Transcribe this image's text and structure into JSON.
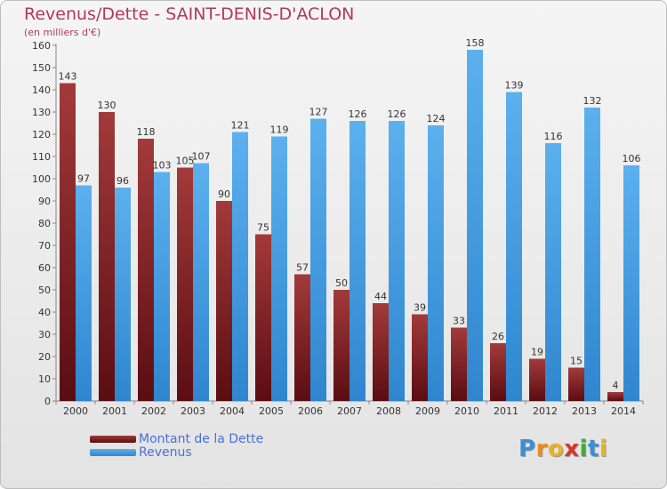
{
  "title": "Revenus/Dette - SAINT-DENIS-D'ACLON",
  "subtitle": "(en milliers d'€)",
  "colors": {
    "dette": "#7d1a1f",
    "revenus": "#4aa2e6",
    "title": "#b03a5a",
    "legend_text": "#4a6fd8"
  },
  "legend": [
    {
      "label": "Montant de la Dette",
      "color": "#7d1a1f"
    },
    {
      "label": "Revenus",
      "color": "#4aa2e6"
    }
  ],
  "logo": {
    "text": "Proxiti",
    "letters": [
      {
        "ch": "P",
        "color": "#3a8fd6"
      },
      {
        "ch": "r",
        "color": "#f08a1c"
      },
      {
        "ch": "o",
        "color": "#e6b41e"
      },
      {
        "ch": "x",
        "color": "#d2372b"
      },
      {
        "ch": "i",
        "color": "#46a843"
      },
      {
        "ch": "t",
        "color": "#3a8fd6"
      },
      {
        "ch": "i",
        "color": "#e6b41e"
      }
    ]
  },
  "chart_data": {
    "type": "bar",
    "title": "Revenus/Dette - SAINT-DENIS-D'ACLON",
    "subtitle": "(en milliers d'€)",
    "xlabel": "",
    "ylabel": "",
    "ylim": [
      0,
      160
    ],
    "yticks": [
      0,
      10,
      20,
      30,
      40,
      50,
      60,
      70,
      80,
      90,
      100,
      110,
      120,
      130,
      140,
      150,
      160
    ],
    "grid": false,
    "legend_position": "bottom-left",
    "categories": [
      "2000",
      "2001",
      "2002",
      "2003",
      "2004",
      "2005",
      "2006",
      "2007",
      "2008",
      "2009",
      "2010",
      "2011",
      "2012",
      "2013",
      "2014"
    ],
    "series": [
      {
        "name": "Montant de la Dette",
        "color": "#7d1a1f",
        "values": [
          143,
          130,
          118,
          105,
          90,
          75,
          57,
          50,
          44,
          39,
          33,
          26,
          19,
          15,
          4
        ]
      },
      {
        "name": "Revenus",
        "color": "#4aa2e6",
        "values": [
          97,
          96,
          103,
          107,
          121,
          119,
          127,
          126,
          126,
          124,
          158,
          139,
          116,
          132,
          106
        ]
      }
    ]
  }
}
